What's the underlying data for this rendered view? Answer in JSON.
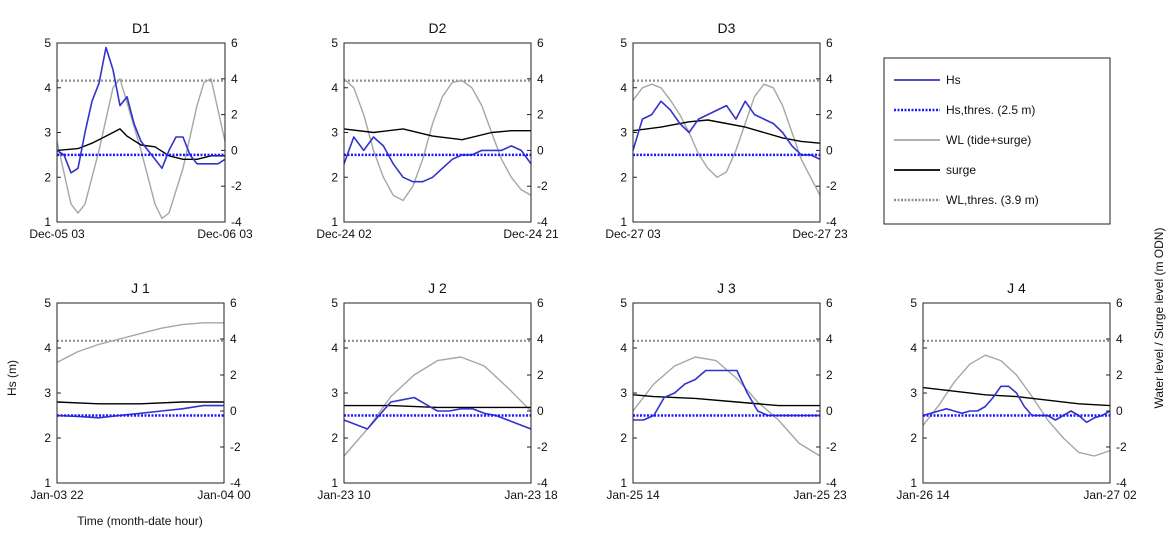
{
  "figure": {
    "left_axis_label": "Hs (m)",
    "right_axis_label": "Water level / Surge level (m ODN)",
    "x_axis_label": "Time (month-date hour)"
  },
  "legend": {
    "items": [
      {
        "label": "Hs",
        "color": "#3333cc",
        "style": "solid"
      },
      {
        "label": "Hs,thres. (2.5 m)",
        "color": "#1a1aff",
        "style": "dotted"
      },
      {
        "label": "WL (tide+surge)",
        "color": "#a6a6a6",
        "style": "solid"
      },
      {
        "label": "surge",
        "color": "#000000",
        "style": "solid"
      },
      {
        "label": "WL,thres. (3.9 m)",
        "color": "#909090",
        "style": "dotted"
      }
    ]
  },
  "chart_data": [
    {
      "type": "line",
      "title": "D1",
      "x_tick_labels": [
        "Dec-05 03",
        "Dec-06 03"
      ],
      "x_range": [
        0,
        24
      ],
      "ylim_left": [
        1,
        5
      ],
      "yticks_left": [
        1,
        2,
        3,
        4,
        5
      ],
      "ylim_right": [
        -4,
        6
      ],
      "yticks_right": [
        -4,
        -2,
        0,
        2,
        4,
        6
      ],
      "hs_threshold": 2.5,
      "wl_threshold": 3.9,
      "series": [
        {
          "name": "Hs",
          "axis": "left",
          "x": [
            0,
            1,
            2,
            3,
            4,
            5,
            6,
            7,
            8,
            9,
            10,
            11,
            12,
            13,
            14,
            15,
            16,
            17,
            18,
            19,
            20,
            21,
            22,
            23,
            24
          ],
          "y": [
            2.6,
            2.5,
            2.1,
            2.2,
            3.0,
            3.7,
            4.1,
            4.9,
            4.4,
            3.6,
            3.8,
            3.2,
            2.8,
            2.6,
            2.4,
            2.2,
            2.6,
            2.9,
            2.9,
            2.5,
            2.3,
            2.3,
            2.3,
            2.3,
            2.4
          ]
        },
        {
          "name": "WL (tide+surge)",
          "axis": "right",
          "x": [
            0,
            2,
            3,
            4,
            6,
            8,
            9,
            12,
            14,
            15,
            16,
            18,
            20,
            21,
            22,
            24
          ],
          "y": [
            0.5,
            -3.0,
            -3.5,
            -3.0,
            0.0,
            3.5,
            4.0,
            0.0,
            -3.0,
            -3.8,
            -3.5,
            -1.0,
            2.5,
            3.8,
            4.0,
            0.5
          ]
        },
        {
          "name": "surge",
          "axis": "right",
          "x": [
            0,
            3,
            5,
            7,
            9,
            10,
            12,
            14,
            16,
            18,
            20,
            22,
            24
          ],
          "y": [
            0.0,
            0.1,
            0.4,
            0.8,
            1.2,
            0.8,
            0.3,
            0.2,
            -0.3,
            -0.5,
            -0.5,
            -0.3,
            -0.3
          ]
        }
      ]
    },
    {
      "type": "line",
      "title": "D2",
      "x_tick_labels": [
        "Dec-24 02",
        "Dec-24 21"
      ],
      "x_range": [
        0,
        19
      ],
      "ylim_left": [
        1,
        5
      ],
      "yticks_left": [
        1,
        2,
        3,
        4,
        5
      ],
      "ylim_right": [
        -4,
        6
      ],
      "yticks_right": [
        -4,
        -2,
        0,
        2,
        4,
        6
      ],
      "hs_threshold": 2.5,
      "wl_threshold": 3.9,
      "series": [
        {
          "name": "Hs",
          "axis": "left",
          "x": [
            0,
            1,
            2,
            3,
            4,
            5,
            6,
            7,
            8,
            9,
            10,
            11,
            12,
            13,
            14,
            15,
            16,
            17,
            18,
            19
          ],
          "y": [
            2.3,
            2.9,
            2.6,
            2.9,
            2.7,
            2.3,
            2.0,
            1.9,
            1.9,
            2.0,
            2.2,
            2.4,
            2.5,
            2.5,
            2.6,
            2.6,
            2.6,
            2.7,
            2.6,
            2.3
          ]
        },
        {
          "name": "WL (tide+surge)",
          "axis": "right",
          "x": [
            0,
            1,
            2,
            3,
            4,
            5,
            6,
            7,
            8,
            9,
            10,
            11,
            12,
            13,
            14,
            15,
            16,
            17,
            18,
            19
          ],
          "y": [
            4.0,
            3.5,
            2.0,
            0.0,
            -1.5,
            -2.5,
            -2.8,
            -2.0,
            -0.5,
            1.5,
            3.0,
            3.8,
            3.9,
            3.5,
            2.5,
            1.0,
            -0.5,
            -1.5,
            -2.2,
            -2.5
          ]
        },
        {
          "name": "surge",
          "axis": "right",
          "x": [
            0,
            3,
            6,
            9,
            12,
            15,
            17,
            19
          ],
          "y": [
            1.2,
            1.0,
            1.2,
            0.8,
            0.6,
            1.0,
            1.1,
            1.1
          ]
        }
      ]
    },
    {
      "type": "line",
      "title": "D3",
      "x_tick_labels": [
        "Dec-27 03",
        "Dec-27 23"
      ],
      "x_range": [
        0,
        20
      ],
      "ylim_left": [
        1,
        5
      ],
      "yticks_left": [
        1,
        2,
        3,
        4,
        5
      ],
      "ylim_right": [
        -4,
        6
      ],
      "yticks_right": [
        -4,
        -2,
        0,
        2,
        4,
        6
      ],
      "hs_threshold": 2.5,
      "wl_threshold": 3.9,
      "series": [
        {
          "name": "Hs",
          "axis": "left",
          "x": [
            0,
            1,
            2,
            3,
            4,
            5,
            6,
            7,
            8,
            9,
            10,
            11,
            12,
            13,
            14,
            15,
            16,
            17,
            18,
            19,
            20
          ],
          "y": [
            2.6,
            3.3,
            3.4,
            3.7,
            3.5,
            3.2,
            3.0,
            3.3,
            3.4,
            3.5,
            3.6,
            3.3,
            3.7,
            3.4,
            3.3,
            3.2,
            3.0,
            2.7,
            2.5,
            2.5,
            2.4
          ]
        },
        {
          "name": "WL (tide+surge)",
          "axis": "right",
          "x": [
            0,
            1,
            2,
            3,
            4,
            5,
            6,
            7,
            8,
            9,
            10,
            11,
            12,
            13,
            14,
            15,
            16,
            17,
            18,
            19,
            20
          ],
          "y": [
            2.8,
            3.5,
            3.7,
            3.5,
            2.8,
            2.0,
            1.0,
            -0.2,
            -1.0,
            -1.5,
            -1.2,
            0.0,
            1.5,
            3.0,
            3.7,
            3.5,
            2.5,
            1.0,
            -0.5,
            -1.5,
            -2.5
          ]
        },
        {
          "name": "surge",
          "axis": "right",
          "x": [
            0,
            3,
            6,
            8,
            10,
            12,
            14,
            16,
            18,
            20
          ],
          "y": [
            1.1,
            1.3,
            1.6,
            1.7,
            1.5,
            1.3,
            1.0,
            0.7,
            0.5,
            0.4
          ]
        }
      ]
    },
    {
      "type": "line",
      "title": "J 1",
      "x_tick_labels": [
        "Jan-03 22",
        "Jan-04 00"
      ],
      "x_range": [
        0,
        2
      ],
      "ylim_left": [
        1,
        5
      ],
      "yticks_left": [
        1,
        2,
        3,
        4,
        5
      ],
      "ylim_right": [
        -4,
        6
      ],
      "yticks_right": [
        -4,
        -2,
        0,
        2,
        4,
        6
      ],
      "hs_threshold": 2.5,
      "wl_threshold": 3.9,
      "series": [
        {
          "name": "Hs",
          "axis": "left",
          "x": [
            0,
            0.25,
            0.5,
            0.75,
            1.0,
            1.25,
            1.5,
            1.75,
            2.0
          ],
          "y": [
            2.5,
            2.48,
            2.45,
            2.5,
            2.55,
            2.6,
            2.65,
            2.72,
            2.72
          ]
        },
        {
          "name": "WL (tide+surge)",
          "axis": "right",
          "x": [
            0,
            0.25,
            0.5,
            0.75,
            1.0,
            1.25,
            1.5,
            1.75,
            2.0
          ],
          "y": [
            2.7,
            3.3,
            3.7,
            4.0,
            4.3,
            4.6,
            4.8,
            4.9,
            4.9
          ]
        },
        {
          "name": "surge",
          "axis": "right",
          "x": [
            0,
            0.5,
            1.0,
            1.5,
            2.0
          ],
          "y": [
            0.5,
            0.4,
            0.4,
            0.5,
            0.5
          ]
        }
      ]
    },
    {
      "type": "line",
      "title": "J 2",
      "x_tick_labels": [
        "Jan-23 10",
        "Jan-23 18"
      ],
      "x_range": [
        0,
        8
      ],
      "ylim_left": [
        1,
        5
      ],
      "yticks_left": [
        1,
        2,
        3,
        4,
        5
      ],
      "ylim_right": [
        -4,
        6
      ],
      "yticks_right": [
        -4,
        -2,
        0,
        2,
        4,
        6
      ],
      "hs_threshold": 2.5,
      "wl_threshold": 3.9,
      "series": [
        {
          "name": "Hs",
          "axis": "left",
          "x": [
            0,
            0.5,
            1,
            1.5,
            2,
            2.5,
            3,
            3.5,
            4,
            4.5,
            5,
            5.5,
            6,
            6.5,
            7,
            7.5,
            8
          ],
          "y": [
            2.4,
            2.3,
            2.2,
            2.5,
            2.8,
            2.85,
            2.9,
            2.75,
            2.6,
            2.6,
            2.65,
            2.65,
            2.55,
            2.5,
            2.4,
            2.3,
            2.2
          ]
        },
        {
          "name": "WL (tide+surge)",
          "axis": "right",
          "x": [
            0,
            1,
            2,
            3,
            4,
            5,
            6,
            7,
            8
          ],
          "y": [
            -2.5,
            -1.0,
            0.8,
            2.0,
            2.8,
            3.0,
            2.5,
            1.3,
            0.0
          ]
        },
        {
          "name": "surge",
          "axis": "right",
          "x": [
            0,
            2,
            4,
            6,
            8
          ],
          "y": [
            0.3,
            0.3,
            0.2,
            0.2,
            0.2
          ]
        }
      ]
    },
    {
      "type": "line",
      "title": "J 3",
      "x_tick_labels": [
        "Jan-25 14",
        "Jan-25 23"
      ],
      "x_range": [
        0,
        9
      ],
      "ylim_left": [
        1,
        5
      ],
      "yticks_left": [
        1,
        2,
        3,
        4,
        5
      ],
      "ylim_right": [
        -4,
        6
      ],
      "yticks_right": [
        -4,
        -2,
        0,
        2,
        4,
        6
      ],
      "hs_threshold": 2.5,
      "wl_threshold": 3.9,
      "series": [
        {
          "name": "Hs",
          "axis": "left",
          "x": [
            0,
            0.5,
            1,
            1.5,
            2,
            2.5,
            3,
            3.5,
            4,
            4.5,
            5,
            5.5,
            6,
            6.5,
            7,
            7.5,
            8,
            8.5,
            9
          ],
          "y": [
            2.4,
            2.4,
            2.5,
            2.9,
            3.0,
            3.2,
            3.3,
            3.5,
            3.5,
            3.5,
            3.5,
            3.0,
            2.6,
            2.5,
            2.5,
            2.5,
            2.5,
            2.5,
            2.5
          ]
        },
        {
          "name": "WL (tide+surge)",
          "axis": "right",
          "x": [
            0,
            1,
            2,
            3,
            4,
            5,
            6,
            7,
            8,
            9
          ],
          "y": [
            0.0,
            1.5,
            2.5,
            3.0,
            2.8,
            1.8,
            0.5,
            -0.5,
            -1.8,
            -2.5
          ]
        },
        {
          "name": "surge",
          "axis": "right",
          "x": [
            0,
            1,
            3,
            5,
            7,
            9
          ],
          "y": [
            0.9,
            0.8,
            0.7,
            0.5,
            0.3,
            0.3
          ]
        }
      ]
    },
    {
      "type": "line",
      "title": "J 4",
      "x_tick_labels": [
        "Jan-26 14",
        "Jan-27 02"
      ],
      "x_range": [
        0,
        12
      ],
      "ylim_left": [
        1,
        5
      ],
      "yticks_left": [
        1,
        2,
        3,
        4,
        5
      ],
      "ylim_right": [
        -4,
        6
      ],
      "yticks_right": [
        -4,
        -2,
        0,
        2,
        4,
        6
      ],
      "hs_threshold": 2.5,
      "wl_threshold": 3.9,
      "series": [
        {
          "name": "Hs",
          "axis": "left",
          "x": [
            0,
            0.5,
            1,
            1.5,
            2,
            2.5,
            3,
            3.5,
            4,
            4.5,
            5,
            5.5,
            6,
            6.5,
            7,
            7.5,
            8,
            8.5,
            9,
            9.5,
            10,
            10.5,
            11,
            11.5,
            12
          ],
          "y": [
            2.5,
            2.55,
            2.6,
            2.65,
            2.6,
            2.55,
            2.6,
            2.6,
            2.7,
            2.9,
            3.15,
            3.15,
            3.0,
            2.7,
            2.5,
            2.5,
            2.5,
            2.4,
            2.5,
            2.6,
            2.5,
            2.35,
            2.45,
            2.5,
            2.6
          ]
        },
        {
          "name": "WL (tide+surge)",
          "axis": "right",
          "x": [
            0,
            1,
            2,
            3,
            4,
            5,
            6,
            7,
            8,
            9,
            10,
            11,
            12
          ],
          "y": [
            -0.8,
            0.3,
            1.6,
            2.6,
            3.1,
            2.8,
            2.0,
            0.8,
            -0.5,
            -1.5,
            -2.3,
            -2.5,
            -2.2
          ]
        },
        {
          "name": "surge",
          "axis": "right",
          "x": [
            0,
            2,
            4,
            6,
            8,
            10,
            12
          ],
          "y": [
            1.3,
            1.1,
            0.9,
            0.8,
            0.6,
            0.4,
            0.3
          ]
        }
      ]
    }
  ]
}
